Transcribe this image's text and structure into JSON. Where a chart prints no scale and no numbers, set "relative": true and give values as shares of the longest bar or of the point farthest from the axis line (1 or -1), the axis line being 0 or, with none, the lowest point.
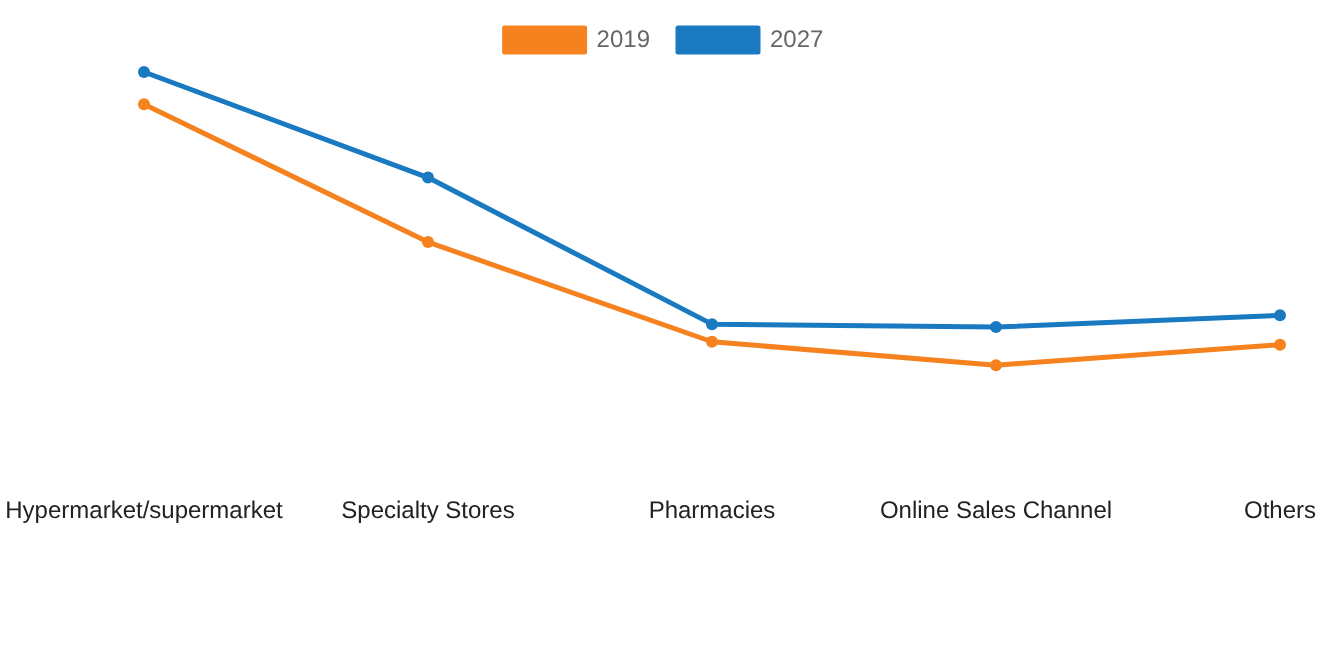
{
  "chart_data": {
    "type": "line",
    "relative": true,
    "legend": "top",
    "marker": "circle",
    "grid": false,
    "categories": [
      "Hypermarket/supermarket",
      "Specialty Stores",
      "Pharmacies",
      "Online Sales Channel",
      "Others"
    ],
    "series": [
      {
        "name": "2019",
        "color": "#f5821f",
        "values": [
          0.89,
          0.42,
          0.08,
          0,
          0.07
        ]
      },
      {
        "name": "2027",
        "color": "#1a7ac1",
        "values": [
          1,
          0.64,
          0.14,
          0.13,
          0.17
        ]
      }
    ]
  }
}
